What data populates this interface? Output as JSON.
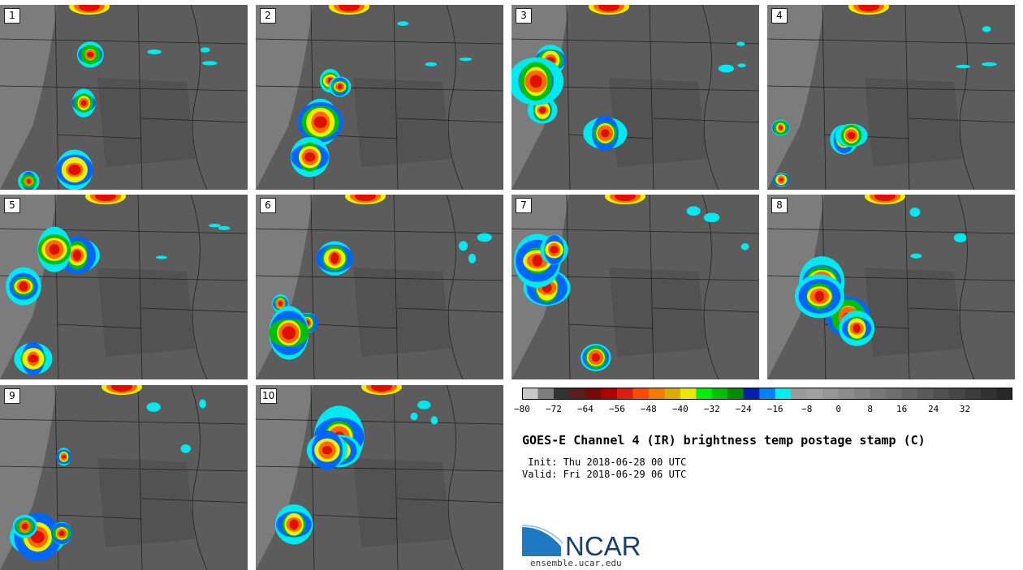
{
  "panels": [
    {
      "label": "1"
    },
    {
      "label": "2"
    },
    {
      "label": "3"
    },
    {
      "label": "4"
    },
    {
      "label": "5"
    },
    {
      "label": "6"
    },
    {
      "label": "7"
    },
    {
      "label": "8"
    },
    {
      "label": "9"
    },
    {
      "label": "10"
    }
  ],
  "colorbar": {
    "colors": [
      "#c8c8c8",
      "#7d7d7d",
      "#333333",
      "#5a1e1e",
      "#7a0a0a",
      "#b00000",
      "#e01c0c",
      "#ff4a00",
      "#f57a00",
      "#dcaa00",
      "#e8e800",
      "#00f000",
      "#00c000",
      "#008c00",
      "#0020b0",
      "#0082ff",
      "#00f0f0",
      "#9a9a9a",
      "#a0a0a0",
      "#969696",
      "#8c8c8c",
      "#828282",
      "#787878",
      "#6e6e6e",
      "#646464",
      "#5a5a5a",
      "#505050",
      "#464646",
      "#3c3c3c",
      "#323232",
      "#282828"
    ],
    "ticks": [
      "−80",
      "−72",
      "−64",
      "−56",
      "−48",
      "−40",
      "−32",
      "−24",
      "−16",
      "−8",
      "0",
      "8",
      "16",
      "24",
      "32"
    ]
  },
  "title": "GOES-E Channel 4 (IR) brightness temp postage stamp (C)",
  "init_line": " Init: Thu 2018-06-28 00 UTC",
  "valid_line": "Valid: Fri 2018-06-29 06 UTC",
  "logo": {
    "name": "NCAR",
    "url": "ensemble.ucar.edu",
    "color": "#1a3e6e",
    "accent": "#2a7fc0"
  }
}
